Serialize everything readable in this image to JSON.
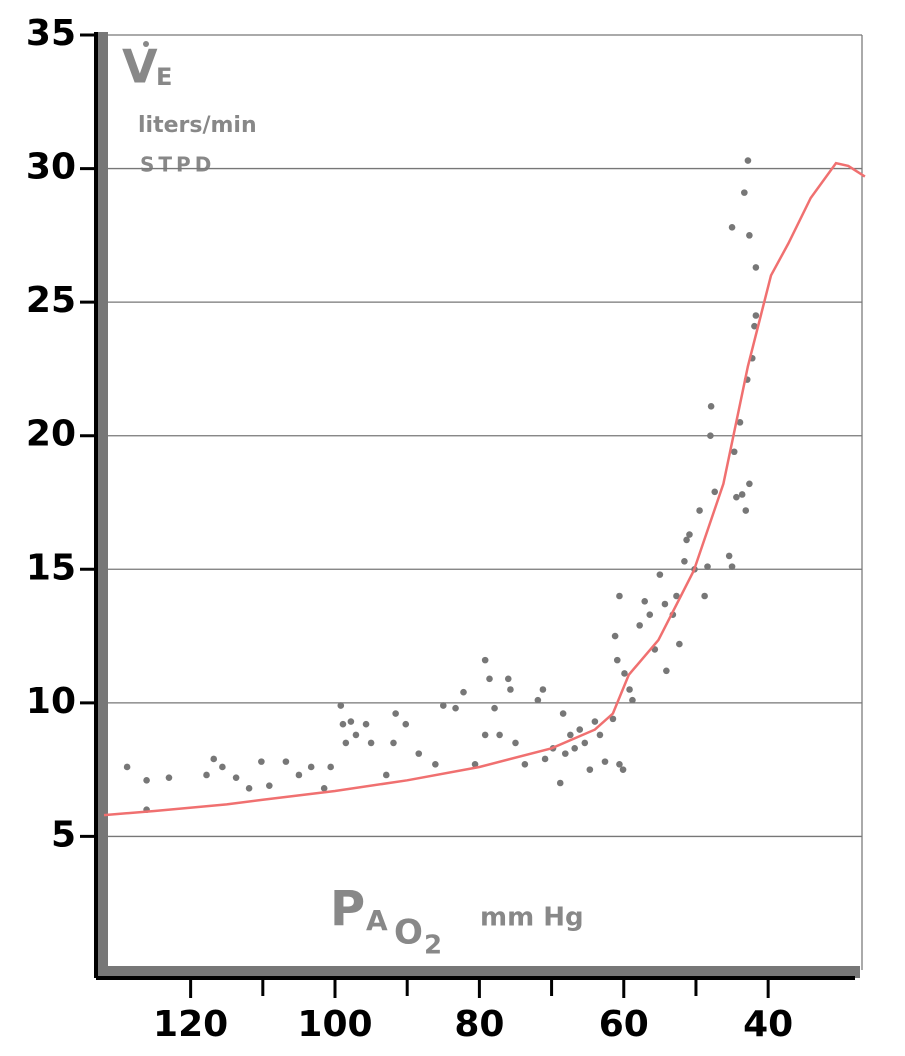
{
  "chart_data": {
    "type": "scatter",
    "ylabel": {
      "main": "V",
      "sub": "E"
    },
    "yunits": [
      "liters/min",
      "STPD"
    ],
    "xlabel": {
      "main": "P",
      "sub": "A",
      "gas": "O",
      "gas_sub": "2",
      "units": "mm Hg"
    },
    "xlim": [
      132,
      27
    ],
    "ylim": [
      0,
      35
    ],
    "xticks": [
      120,
      100,
      80,
      60,
      40
    ],
    "xminorticks": [
      110,
      90,
      70,
      50
    ],
    "yticks": [
      5,
      10,
      15,
      20,
      25,
      30,
      35
    ],
    "grid": true,
    "series": [
      {
        "kind": "points",
        "color": "#777777",
        "x": [
          128.8,
          126.1,
          126.1,
          123.0,
          117.8,
          116.8,
          115.6,
          113.7,
          111.9,
          110.2,
          109.1,
          106.8,
          105.0,
          103.3,
          101.5,
          100.6,
          99.2,
          98.9,
          98.5,
          97.8,
          97.1,
          95.7,
          95.0,
          92.9,
          91.9,
          91.6,
          90.2,
          88.4,
          86.1,
          85.0,
          83.3,
          82.2,
          80.6,
          79.2,
          79.2,
          78.6,
          77.9,
          77.2,
          76.0,
          75.7,
          75.0,
          73.7,
          71.9,
          71.2,
          70.9,
          69.8,
          68.8,
          68.4,
          68.1,
          67.4,
          66.8,
          66.1,
          65.4,
          64.7,
          64.0,
          63.3,
          62.6,
          61.5,
          61.2,
          60.9,
          60.6,
          60.6,
          60.1,
          59.9,
          59.2,
          58.8,
          57.8,
          57.1,
          56.4,
          55.7,
          55.0,
          54.3,
          54.1,
          53.2,
          52.7,
          52.3,
          51.6,
          51.3,
          50.9,
          50.2,
          49.5,
          48.8,
          48.4,
          48.0,
          47.9,
          47.4,
          45.4,
          45.0,
          45.0,
          44.7,
          44.4,
          43.9,
          43.6,
          43.3,
          43.1,
          42.9,
          42.8,
          42.6,
          42.2,
          41.9,
          41.7,
          41.7,
          42.6
        ],
        "values": [
          7.6,
          7.1,
          6.0,
          7.2,
          7.3,
          7.9,
          7.6,
          7.2,
          6.8,
          7.8,
          6.9,
          7.8,
          7.3,
          7.6,
          6.8,
          7.6,
          9.9,
          9.2,
          8.5,
          9.3,
          8.8,
          9.2,
          8.5,
          7.3,
          8.5,
          9.6,
          9.2,
          8.1,
          7.7,
          9.9,
          9.8,
          10.4,
          7.7,
          11.6,
          8.8,
          10.9,
          9.8,
          8.8,
          10.9,
          10.5,
          8.5,
          7.7,
          10.1,
          10.5,
          7.9,
          8.3,
          7.0,
          9.6,
          8.1,
          8.8,
          8.3,
          9.0,
          8.5,
          7.5,
          9.3,
          8.8,
          7.8,
          9.4,
          12.5,
          11.6,
          14.0,
          7.7,
          7.5,
          11.1,
          10.5,
          10.1,
          12.9,
          13.8,
          13.3,
          12.0,
          14.8,
          13.7,
          11.2,
          13.3,
          14.0,
          12.2,
          15.3,
          16.1,
          16.3,
          15.0,
          17.2,
          14.0,
          15.1,
          20.0,
          21.1,
          17.9,
          15.5,
          15.1,
          27.8,
          19.4,
          17.7,
          20.5,
          17.8,
          29.1,
          17.2,
          22.1,
          30.3,
          27.5,
          22.9,
          24.1,
          26.3,
          24.5,
          18.2
        ]
      },
      {
        "kind": "curve",
        "color": "#f07070",
        "x": [
          132,
          125,
          115,
          110,
          100,
          90,
          80,
          70,
          64,
          61.5,
          59.3,
          55.2,
          50.3,
          46.2,
          42.8,
          39.6,
          37.2,
          34.1,
          30.6,
          28.9,
          26.6
        ],
        "values": [
          5.8,
          5.95,
          6.2,
          6.37,
          6.7,
          7.1,
          7.6,
          8.3,
          9.0,
          9.6,
          11.05,
          12.35,
          14.95,
          18.2,
          22.6,
          26.0,
          27.2,
          28.9,
          30.2,
          30.1,
          29.7
        ]
      }
    ]
  }
}
